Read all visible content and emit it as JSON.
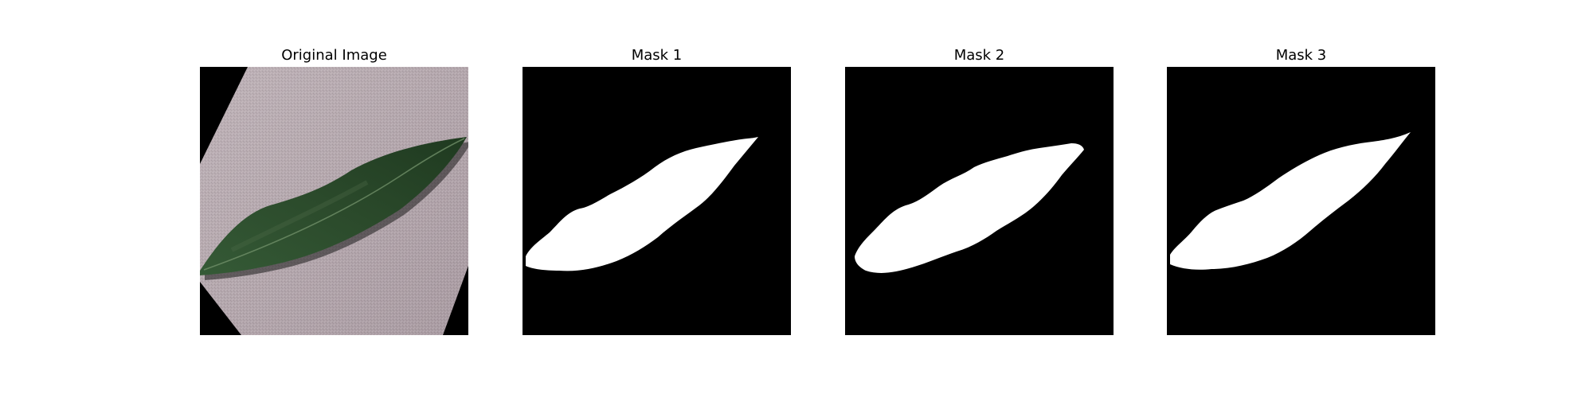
{
  "figure": {
    "panels": [
      {
        "title": "Original Image",
        "kind": "photo"
      },
      {
        "title": "Mask 1",
        "kind": "mask"
      },
      {
        "title": "Mask 2",
        "kind": "mask"
      },
      {
        "title": "Mask 3",
        "kind": "mask"
      }
    ],
    "colors": {
      "background": "#ffffff",
      "mask_background": "#000000",
      "mask_foreground": "#ffffff",
      "paper": "#b7aab0",
      "leaf": "#2e4a2c",
      "leaf_highlight": "#4d6b47"
    }
  }
}
